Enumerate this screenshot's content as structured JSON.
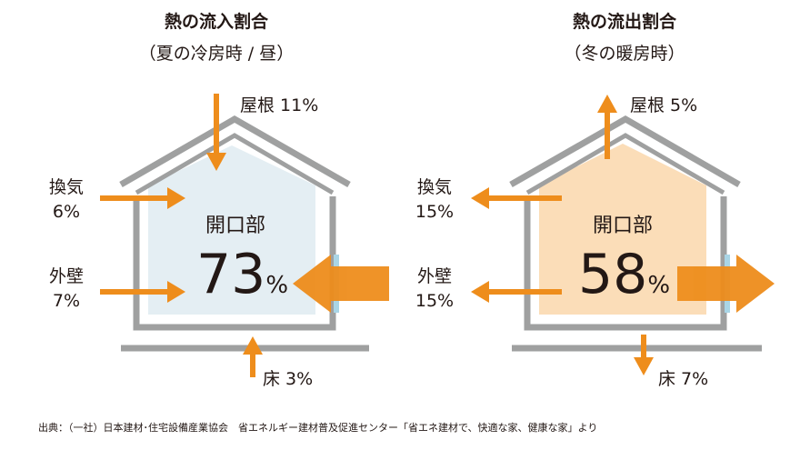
{
  "colors": {
    "arrow": "#ee8d1c",
    "frame": "#9fa0a0",
    "summer_fill": "#e4eef3",
    "winter_fill": "#fbddb8",
    "window": "#a9d5e6"
  },
  "summer": {
    "title": "熱の流入割合",
    "subtitle": "（夏の冷房時 / 昼）",
    "roof": "屋根 11%",
    "vent_name": "換気",
    "vent_pct": "6%",
    "wall_name": "外壁",
    "wall_pct": "7%",
    "floor": "床 3%",
    "opening_label": "開口部",
    "opening_value": "73",
    "percent_sign": "%"
  },
  "winter": {
    "title": "熱の流出割合",
    "subtitle": "（冬の暖房時）",
    "roof": "屋根 5%",
    "vent_name": "換気",
    "vent_pct": "15%",
    "wall_name": "外壁",
    "wall_pct": "15%",
    "floor": "床 7%",
    "opening_label": "開口部",
    "opening_value": "58",
    "percent_sign": "%"
  },
  "source": "出典：（一社）日本建材･住宅設備産業協会　省エネルギー建材普及促進センター「省エネ建材で、快適な家、健康な家」より"
}
